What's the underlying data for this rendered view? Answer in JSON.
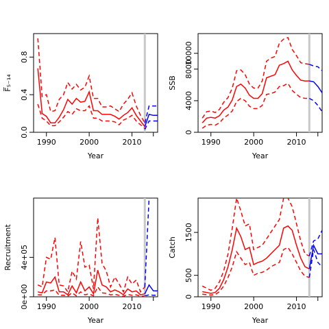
{
  "chart_data": [
    {
      "type": "line",
      "ylabel": "F̅₅₋₁₄",
      "xlabel": "Year",
      "xlim": [
        1987,
        2016
      ],
      "ylim": [
        0,
        1.05
      ],
      "xticks": [
        1990,
        2000,
        2010
      ],
      "yticks": [
        0.0,
        0.4,
        0.8
      ],
      "ytick_labels": [
        "0.0",
        "0.4",
        "0.8"
      ],
      "vline_x": 2013,
      "x": [
        1988,
        1989,
        1990,
        1991,
        1992,
        1993,
        1994,
        1995,
        1996,
        1997,
        1998,
        1999,
        2000,
        2001,
        2002,
        2003,
        2004,
        2005,
        2006,
        2007,
        2008,
        2009,
        2010,
        2011,
        2012,
        2013
      ],
      "series": [
        {
          "role": "estimate",
          "color": "#ff0000",
          "dash": false,
          "values": [
            0.68,
            0.2,
            0.17,
            0.1,
            0.1,
            0.16,
            0.24,
            0.35,
            0.3,
            0.36,
            0.32,
            0.33,
            0.43,
            0.23,
            0.23,
            0.19,
            0.19,
            0.19,
            0.17,
            0.14,
            0.18,
            0.21,
            0.26,
            0.18,
            0.12,
            0.06
          ]
        },
        {
          "role": "upper",
          "color": "#ff0000",
          "dash": true,
          "values": [
            1.0,
            0.38,
            0.4,
            0.22,
            0.23,
            0.35,
            0.4,
            0.53,
            0.46,
            0.51,
            0.45,
            0.48,
            0.6,
            0.36,
            0.36,
            0.27,
            0.27,
            0.28,
            0.25,
            0.22,
            0.3,
            0.35,
            0.42,
            0.28,
            0.18,
            0.1
          ]
        },
        {
          "role": "lower",
          "color": "#ff0000",
          "dash": true,
          "values": [
            0.3,
            0.15,
            0.12,
            0.07,
            0.07,
            0.11,
            0.16,
            0.22,
            0.19,
            0.25,
            0.23,
            0.23,
            0.28,
            0.15,
            0.15,
            0.12,
            0.12,
            0.12,
            0.11,
            0.08,
            0.13,
            0.15,
            0.18,
            0.12,
            0.08,
            0.04
          ]
        }
      ],
      "projection_x": [
        2013,
        2014,
        2015,
        2016
      ],
      "projection": [
        {
          "role": "estimate",
          "color": "#0000ff",
          "dash": false,
          "values": [
            0.06,
            0.19,
            0.18,
            0.18
          ]
        },
        {
          "role": "upper",
          "color": "#0000ff",
          "dash": true,
          "values": [
            0.1,
            0.28,
            0.28,
            0.28
          ]
        },
        {
          "role": "lower",
          "color": "#0000ff",
          "dash": true,
          "values": [
            0.03,
            0.12,
            0.12,
            0.12
          ]
        }
      ]
    },
    {
      "type": "line",
      "ylabel": "SSB",
      "xlabel": "Year",
      "xlim": [
        1987,
        2016
      ],
      "ylim": [
        0,
        12500
      ],
      "xticks": [
        1990,
        2000,
        2010
      ],
      "yticks": [
        0,
        4000,
        8000,
        10000
      ],
      "ytick_labels": [
        "0",
        "4000",
        "8000",
        "10000"
      ],
      "vline_x": 2013,
      "x": [
        1988,
        1989,
        1990,
        1991,
        1992,
        1993,
        1994,
        1995,
        1996,
        1997,
        1998,
        1999,
        2000,
        2001,
        2002,
        2003,
        2004,
        2005,
        2006,
        2007,
        2008,
        2009,
        2010,
        2011,
        2012,
        2013
      ],
      "series": [
        {
          "role": "estimate",
          "color": "#ff0000",
          "dash": false,
          "values": [
            1200,
            1800,
            1900,
            1800,
            2100,
            2800,
            3200,
            4100,
            5800,
            6100,
            5600,
            4700,
            4300,
            4300,
            4900,
            6900,
            7100,
            7300,
            8500,
            8700,
            9000,
            7900,
            7200,
            6600,
            6500,
            6500
          ]
        },
        {
          "role": "upper",
          "color": "#ff0000",
          "dash": true,
          "values": [
            1800,
            2600,
            2700,
            2500,
            2900,
            3800,
            4400,
            5600,
            7800,
            7900,
            7300,
            6100,
            5600,
            5600,
            6500,
            9000,
            9400,
            9600,
            11300,
            11800,
            12000,
            10500,
            9700,
            8800,
            8700,
            8600
          ]
        },
        {
          "role": "lower",
          "color": "#ff0000",
          "dash": true,
          "values": [
            500,
            900,
            1000,
            900,
            1200,
            1800,
            2200,
            2700,
            3900,
            4300,
            4000,
            3300,
            3000,
            3000,
            3400,
            4800,
            4900,
            5100,
            5800,
            5900,
            6200,
            5300,
            4800,
            4400,
            4300,
            4300
          ]
        }
      ],
      "projection_x": [
        2013,
        2014,
        2015,
        2016
      ],
      "projection": [
        {
          "role": "estimate",
          "color": "#0000ff",
          "dash": false,
          "values": [
            6500,
            6400,
            5800,
            5000
          ]
        },
        {
          "role": "upper",
          "color": "#0000ff",
          "dash": true,
          "values": [
            8600,
            8400,
            8300,
            7800
          ]
        },
        {
          "role": "lower",
          "color": "#0000ff",
          "dash": true,
          "values": [
            4300,
            4000,
            3400,
            2600
          ]
        }
      ]
    },
    {
      "type": "line",
      "ylabel": "Recruitment",
      "xlabel": "Year",
      "xlim": [
        1987,
        2016
      ],
      "ylim": [
        0,
        1000000
      ],
      "xticks": [
        1990,
        2000,
        2010
      ],
      "yticks": [
        0,
        400000
      ],
      "ytick_labels": [
        "0e+00",
        "4e+05"
      ],
      "vline_x": 2013,
      "x": [
        1988,
        1989,
        1990,
        1991,
        1992,
        1993,
        1994,
        1995,
        1996,
        1997,
        1998,
        1999,
        2000,
        2001,
        2002,
        2003,
        2004,
        2005,
        2006,
        2007,
        2008,
        2009,
        2010,
        2011,
        2012,
        2013
      ],
      "series": [
        {
          "role": "estimate",
          "color": "#ff0000",
          "dash": false,
          "values": [
            50000,
            40000,
            150000,
            140000,
            200000,
            50000,
            50000,
            20000,
            110000,
            40000,
            150000,
            60000,
            100000,
            30000,
            270000,
            120000,
            100000,
            50000,
            70000,
            50000,
            20000,
            80000,
            50000,
            60000,
            20000,
            30000
          ]
        },
        {
          "role": "upper",
          "color": "#ff0000",
          "dash": true,
          "values": [
            120000,
            100000,
            400000,
            380000,
            600000,
            120000,
            110000,
            50000,
            260000,
            180000,
            560000,
            300000,
            320000,
            80000,
            800000,
            340000,
            260000,
            100000,
            200000,
            130000,
            50000,
            200000,
            130000,
            170000,
            50000,
            100000
          ]
        },
        {
          "role": "lower",
          "color": "#ff0000",
          "dash": true,
          "values": [
            20000,
            20000,
            60000,
            60000,
            70000,
            15000,
            15000,
            8000,
            40000,
            10000,
            50000,
            20000,
            30000,
            10000,
            100000,
            40000,
            35000,
            20000,
            25000,
            15000,
            5000,
            25000,
            15000,
            20000,
            5000,
            8000
          ]
        }
      ],
      "projection_x": [
        2013,
        2014,
        2015,
        2016
      ],
      "projection": [
        {
          "role": "estimate",
          "color": "#0000ff",
          "dash": false,
          "values": [
            30000,
            120000,
            60000,
            60000
          ]
        },
        {
          "role": "upper",
          "color": "#0000ff",
          "dash": true,
          "values": [
            100000,
            1000000,
            1050000,
            1050000
          ]
        },
        {
          "role": "lower",
          "color": "#0000ff",
          "dash": true,
          "values": [
            8000,
            20000,
            15000,
            15000
          ]
        }
      ]
    },
    {
      "type": "line",
      "ylabel": "Catch",
      "xlabel": "Year",
      "xlim": [
        1987,
        2016
      ],
      "ylim": [
        0,
        2300
      ],
      "xticks": [
        1990,
        2000,
        2010
      ],
      "yticks": [
        0,
        500,
        1500
      ],
      "ytick_labels": [
        "0",
        "500",
        "1500"
      ],
      "vline_x": 2013,
      "x": [
        1988,
        1989,
        1990,
        1991,
        1992,
        1993,
        1994,
        1995,
        1996,
        1997,
        1998,
        1999,
        2000,
        2001,
        2002,
        2003,
        2004,
        2005,
        2006,
        2007,
        2008,
        2009,
        2010,
        2011,
        2012,
        2013
      ],
      "series": [
        {
          "role": "estimate",
          "color": "#ff0000",
          "dash": false,
          "values": [
            120,
            100,
            80,
            100,
            200,
            400,
            700,
            1100,
            1600,
            1400,
            1100,
            1150,
            750,
            800,
            830,
            900,
            1000,
            1100,
            1200,
            1600,
            1650,
            1550,
            1200,
            900,
            700,
            650
          ]
        },
        {
          "role": "upper",
          "color": "#ff0000",
          "dash": true,
          "values": [
            250,
            200,
            150,
            200,
            350,
            600,
            1000,
            1600,
            2300,
            2000,
            1650,
            1700,
            1100,
            1150,
            1200,
            1350,
            1500,
            1650,
            1800,
            2300,
            2300,
            2100,
            1700,
            1300,
            1000,
            950
          ]
        },
        {
          "role": "lower",
          "color": "#ff0000",
          "dash": true,
          "values": [
            60,
            50,
            40,
            50,
            120,
            250,
            450,
            700,
            1050,
            900,
            750,
            800,
            500,
            550,
            570,
            620,
            700,
            750,
            800,
            1100,
            1150,
            1000,
            800,
            600,
            480,
            450
          ]
        }
      ],
      "projection_x": [
        2013,
        2014,
        2015,
        2016
      ],
      "projection": [
        {
          "role": "estimate",
          "color": "#0000ff",
          "dash": false,
          "values": [
            650,
            1200,
            1000,
            1000
          ]
        },
        {
          "role": "upper",
          "color": "#0000ff",
          "dash": true,
          "values": [
            950,
            1300,
            1350,
            1550
          ]
        },
        {
          "role": "lower",
          "color": "#0000ff",
          "dash": true,
          "values": [
            450,
            1100,
            800,
            700
          ]
        }
      ]
    }
  ],
  "colors": {
    "history": "#ff0000",
    "projection": "#0000ff",
    "vline": "#c8c8c8",
    "axis": "#000000"
  }
}
